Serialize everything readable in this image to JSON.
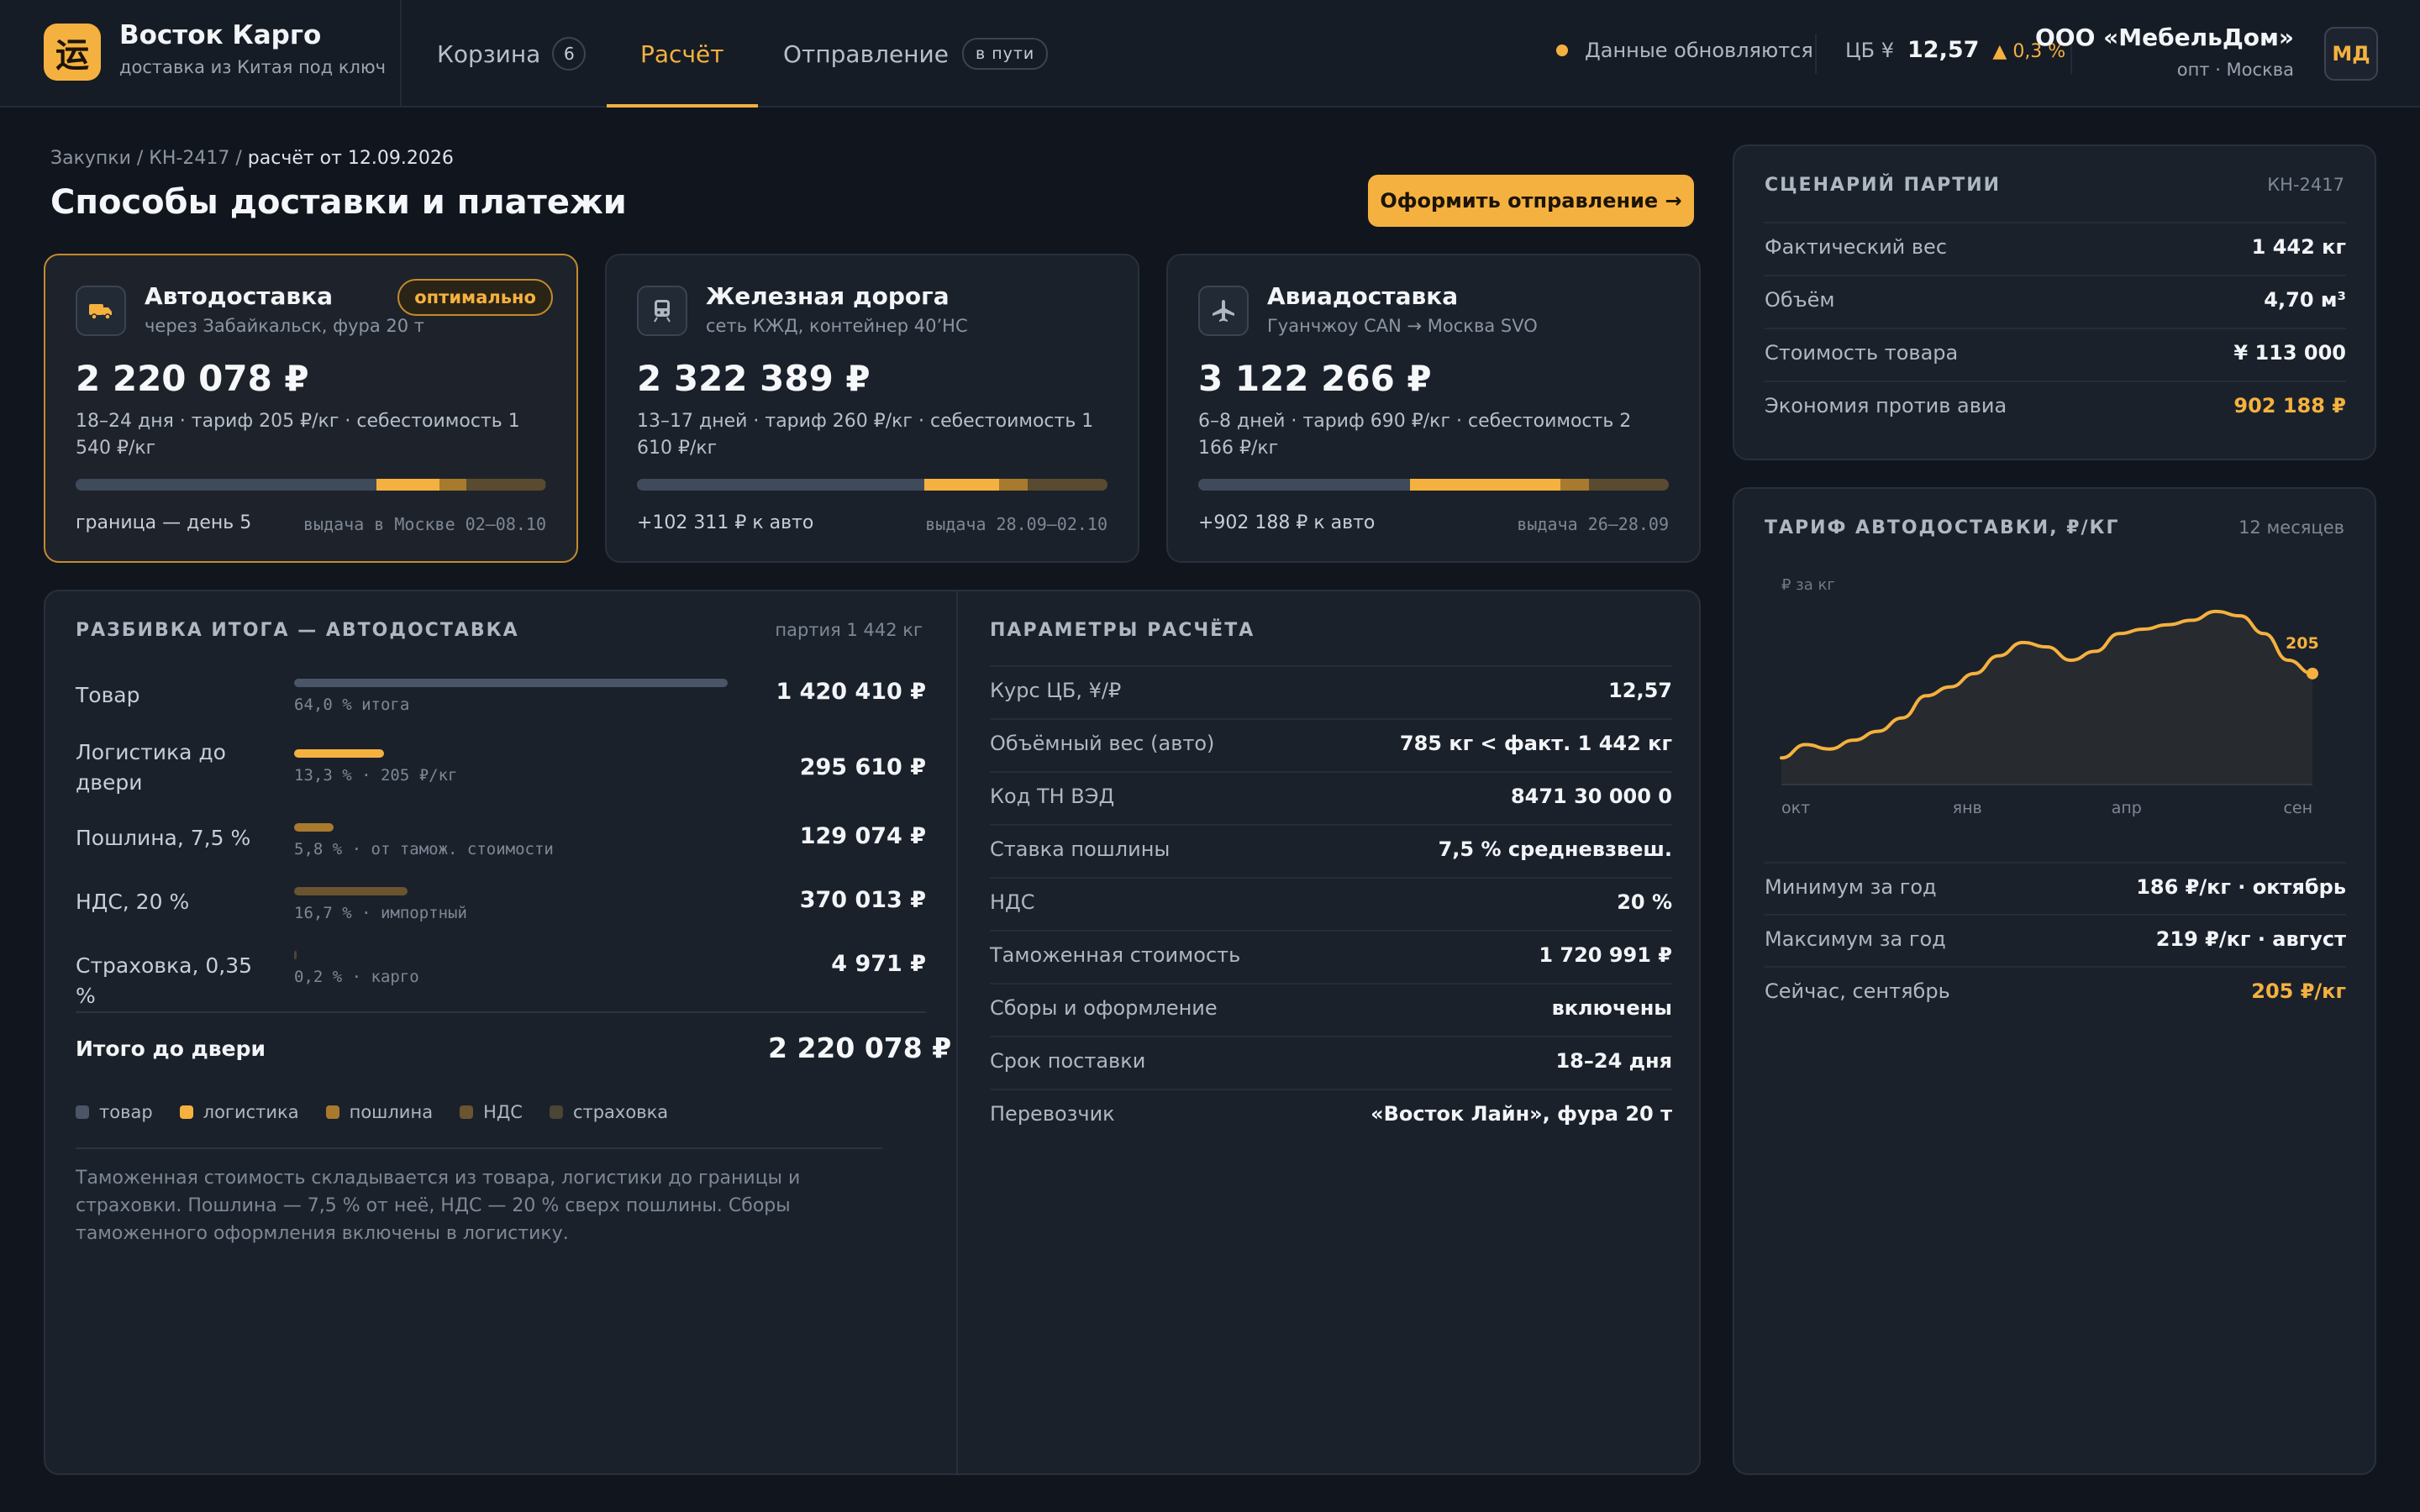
{
  "header": {
    "logo_glyph": "运",
    "brand_name": "Восток Карго",
    "brand_sub": "доставка из Китая под ключ",
    "nav": [
      {
        "label": "Корзина",
        "count": "6"
      },
      {
        "label": "Расчёт"
      },
      {
        "label": "Отправление",
        "tag": "в пути"
      }
    ],
    "status": "Данные обновляются",
    "rate_label": "ЦБ ¥",
    "rate_value": "12,57",
    "rate_change": "▲ 0,3 %",
    "company_name": "ООО «МебельДом»",
    "company_sub": "опт · Москва",
    "avatar": "МД"
  },
  "page": {
    "crumb_parts": [
      "Закупки",
      "КН-2417"
    ],
    "crumb_current": "расчёт от 12.09.2026",
    "crumb_sep": " / ",
    "title": "Способы доставки и платежи",
    "cta": "Оформить отправление →"
  },
  "options": [
    {
      "title": "Автодоставка",
      "sub": "через Забайкальск, фура 20 т",
      "badge": "оптимально",
      "price": "2 220 078 ₽",
      "desc": "18–24 дня · тариф 205 ₽/кг · себестоимость 1 540 ₽/кг",
      "foot_left": "граница — день 5",
      "foot_right": "выдача в Москве 02–08.10",
      "icon": "truck-icon",
      "bar": [
        64,
        13.3,
        5.8,
        16.7
      ]
    },
    {
      "title": "Железная дорога",
      "sub": "сеть КЖД, контейнер 40’HC",
      "price": "2 322 389 ₽",
      "desc": "13–17 дней · тариф 260 ₽/кг · себестоимость 1 610 ₽/кг",
      "foot_left": "+102 311 ₽ к авто",
      "foot_right": "выдача 28.09–02.10",
      "icon": "train-icon",
      "bar": [
        61,
        16,
        6,
        17
      ]
    },
    {
      "title": "Авиадоставка",
      "sub": "Гуанчжоу CAN → Москва SVO",
      "price": "3 122 266 ₽",
      "desc": "6–8 дней · тариф 690 ₽/кг · себестоимость 2 166 ₽/кг",
      "foot_left": "+902 188 ₽ к авто",
      "foot_right": "выдача 26–28.09",
      "icon": "plane-icon",
      "bar": [
        45,
        32,
        6,
        17
      ]
    }
  ],
  "breakdown": {
    "title": "РАЗБИВКА ИТОГА — АВТОДОСТАВКА",
    "meta": "партия 1 442 кг",
    "rows": [
      {
        "label": "Товар",
        "bar_label": "64,0 % итога",
        "value": "1 420 410 ₽",
        "pct": 64.0,
        "color": "#4a5568"
      },
      {
        "label": "Логистика до двери",
        "bar_label": "13,3 % · 205 ₽/кг",
        "value": "295 610 ₽",
        "pct": 13.3,
        "color": "#f5b13f"
      },
      {
        "label": "Пошлина, 7,5 %",
        "bar_label": "5,8 % · от тамож. стоимости",
        "value": "129 074 ₽",
        "pct": 5.8,
        "color": "#a87a2e"
      },
      {
        "label": "НДС, 20 %",
        "bar_label": "16,7 % · импортный",
        "value": "370 013 ₽",
        "pct": 16.7,
        "color": "#6b5430"
      },
      {
        "label": "Страховка, 0,35 %",
        "bar_label": "0,2 % · карго",
        "value": "4 971 ₽",
        "pct": 0.2,
        "color": "#4a4535"
      }
    ],
    "total_label": "Итого до двери",
    "total_value": "2 220 078 ₽",
    "legend": [
      {
        "label": "товар",
        "color": "#4a5568"
      },
      {
        "label": "логистика",
        "color": "#f5b13f"
      },
      {
        "label": "пошлина",
        "color": "#a87a2e"
      },
      {
        "label": "НДС",
        "color": "#6b5430"
      },
      {
        "label": "страховка",
        "color": "#4a4535"
      }
    ],
    "note": "Таможенная стоимость складывается из товара, логистики до границы и страховки. Пошлина — 7,5 % от неё, НДС — 20 % сверх пошлины. Сборы таможенного оформления включены в логистику."
  },
  "params": {
    "title": "ПАРАМЕТРЫ РАСЧЁТА",
    "rows": [
      {
        "label": "Курс ЦБ, ¥/₽",
        "value": "12,57"
      },
      {
        "label": "Объёмный вес (авто)",
        "value": "785 кг < факт. 1 442 кг"
      },
      {
        "label": "Код ТН ВЭД",
        "value": "8471 30 000 0"
      },
      {
        "label": "Ставка пошлины",
        "value": "7,5 % средневзвеш."
      },
      {
        "label": "НДС",
        "value": "20 %"
      },
      {
        "label": "Таможенная стоимость",
        "value": "1 720 991 ₽"
      },
      {
        "label": "Сборы и оформление",
        "value": "включены"
      },
      {
        "label": "Срок поставки",
        "value": "18–24 дня"
      },
      {
        "label": "Перевозчик",
        "value": "«Восток Лайн», фура 20 т"
      }
    ]
  },
  "scenario": {
    "title": "СЦЕНАРИЙ ПАРТИИ",
    "meta": "КН-2417",
    "rows": [
      {
        "label": "Фактический вес",
        "value": "1 442 кг"
      },
      {
        "label": "Объём",
        "value": "4,70 м³"
      },
      {
        "label": "Стоимость товара",
        "value": "¥ 113 000"
      },
      {
        "label": "Экономия против авиа",
        "value": "902 188 ₽",
        "accent": true
      }
    ]
  },
  "tariff": {
    "title": "ТАРИФ АВТОДОСТАВКИ, ₽/КГ",
    "meta": "12 месяцев",
    "rows": [
      {
        "label": "Минимум за год",
        "value": "186 ₽/кг · октябрь"
      },
      {
        "label": "Максимум за год",
        "value": "219 ₽/кг · август"
      },
      {
        "label": "Сейчас, сентябрь",
        "value": "205 ₽/кг",
        "accent": true
      }
    ]
  },
  "chart_data": {
    "type": "area",
    "ylabel": "₽ за кг",
    "x_ticks": [
      "окт",
      "янв",
      "апр",
      "сен"
    ],
    "x": [
      0,
      1,
      2,
      3,
      4,
      5,
      6,
      7,
      8,
      9,
      10,
      11,
      12,
      13,
      14,
      15,
      16,
      17,
      18,
      19,
      20,
      21,
      22
    ],
    "values": [
      186,
      189,
      188,
      190,
      192,
      195,
      200,
      202,
      205,
      209,
      212,
      211,
      208,
      210,
      214,
      215,
      216,
      217,
      219,
      218,
      214,
      208,
      205
    ],
    "ylim": [
      180,
      222
    ],
    "last_label": "205",
    "color": "#f5b13f"
  }
}
